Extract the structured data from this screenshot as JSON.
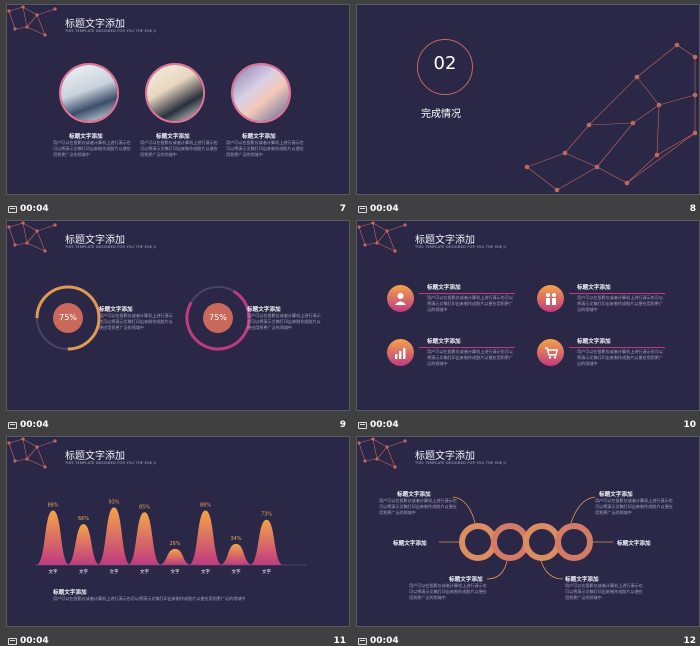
{
  "footer_time": "00:04",
  "slide_numbers": [
    "7",
    "8",
    "9",
    "10",
    "11",
    "12"
  ],
  "title": "标题文字添加",
  "subtitle": "THIS TEMPLATE  DESIGNED FOR YOU THE SHE JI",
  "item_title": "标题文字添加",
  "item_text": "用户可以在投影仪或者计算机上进行演示也可以将演示文稿打印出来制作成胶片以便应用到更广泛的领域中",
  "slide8": {
    "number": "02",
    "label": "完成情况"
  },
  "slide9": {
    "percent": "75%"
  },
  "slide11": {
    "bars": [
      {
        "value": "88%",
        "label": "文字"
      },
      {
        "value": "66%",
        "label": "文字"
      },
      {
        "value": "93%",
        "label": "文字"
      },
      {
        "value": "85%",
        "label": "文字"
      },
      {
        "value": "26%",
        "label": "文字"
      },
      {
        "value": "88%",
        "label": "文字"
      },
      {
        "value": "34%",
        "label": "文字"
      },
      {
        "value": "73%",
        "label": "文字"
      }
    ],
    "bottom_text": "用户可以在投影仪或者计算机上进行演示也可以将演示文稿打印出来制作成胶片以便应用到更广泛的领域中"
  },
  "colors": {
    "background": "#2b2746",
    "accent": "#e2769a",
    "gradient_top": "#f3a449",
    "gradient_bottom": "#c03a80"
  },
  "icons": [
    "user-icon",
    "people-icon",
    "chart-icon",
    "cart-icon"
  ]
}
